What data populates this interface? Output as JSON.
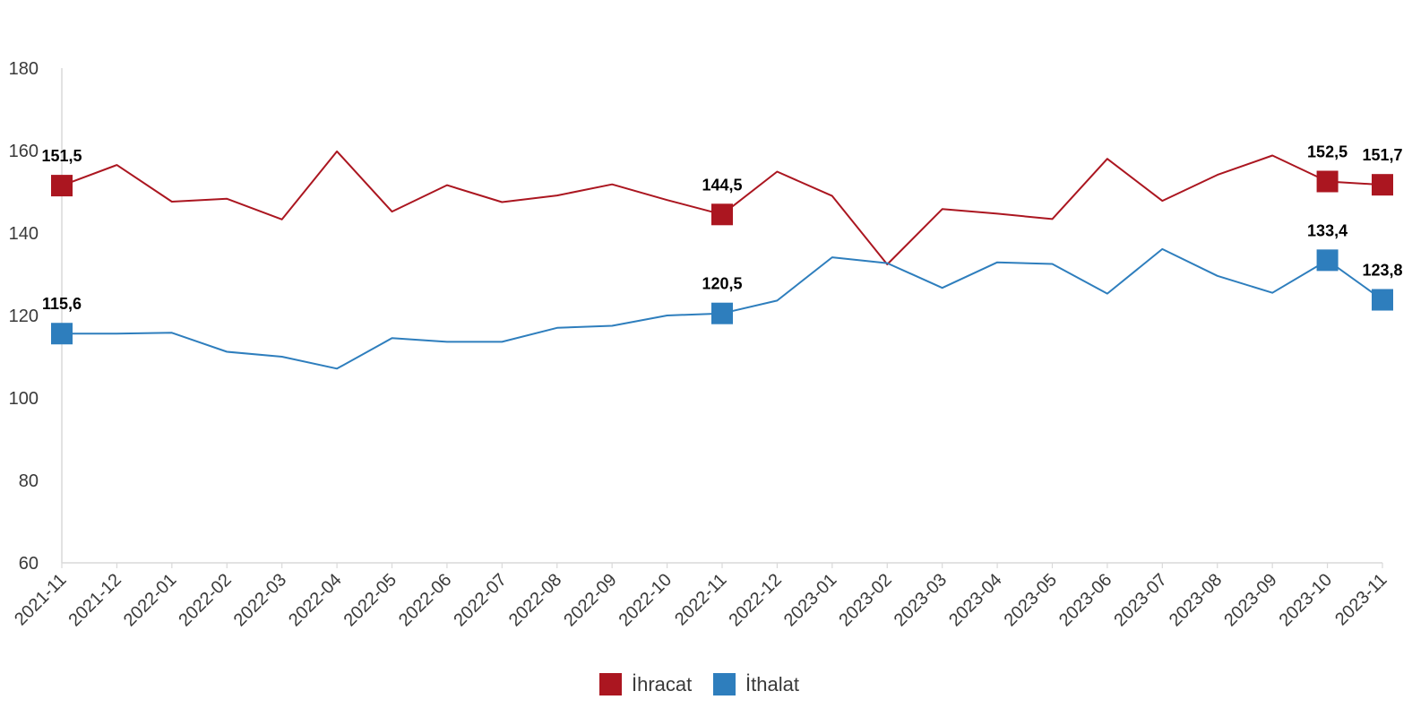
{
  "chart_data": {
    "type": "line",
    "x": [
      "2021-11",
      "2021-12",
      "2022-01",
      "2022-02",
      "2022-03",
      "2022-04",
      "2022-05",
      "2022-06",
      "2022-07",
      "2022-08",
      "2022-09",
      "2022-10",
      "2022-11",
      "2022-12",
      "2023-01",
      "2023-02",
      "2023-03",
      "2023-04",
      "2023-05",
      "2023-06",
      "2023-07",
      "2023-08",
      "2023-09",
      "2023-10",
      "2023-11"
    ],
    "ylim": [
      60,
      180
    ],
    "yticks": [
      60,
      80,
      100,
      120,
      140,
      160,
      180
    ],
    "legend_position": "bottom",
    "grid": false,
    "series": [
      {
        "name": "İhracat",
        "color": "#ab1620",
        "values": [
          151.5,
          156.5,
          147.6,
          148.3,
          143.3,
          159.8,
          145.2,
          151.6,
          147.5,
          149.1,
          151.8,
          148.0,
          144.5,
          154.9,
          149.0,
          132.4,
          145.8,
          144.7,
          143.4,
          158.0,
          147.8,
          154.1,
          158.8,
          152.5,
          151.7
        ],
        "markers": [
          {
            "index": 0,
            "label": "151,5"
          },
          {
            "index": 12,
            "label": "144,5"
          },
          {
            "index": 23,
            "label": "152,5"
          },
          {
            "index": 24,
            "label": "151,7"
          }
        ]
      },
      {
        "name": "İthalat",
        "color": "#2e7ebd",
        "values": [
          115.6,
          115.6,
          115.8,
          111.2,
          110.0,
          107.1,
          114.5,
          113.6,
          113.6,
          117.0,
          117.5,
          120.0,
          120.5,
          123.6,
          134.1,
          132.7,
          126.7,
          132.9,
          132.5,
          125.3,
          136.1,
          129.6,
          125.5,
          133.4,
          123.8
        ],
        "markers": [
          {
            "index": 0,
            "label": "115,6"
          },
          {
            "index": 12,
            "label": "120,5"
          },
          {
            "index": 23,
            "label": "133,4"
          },
          {
            "index": 24,
            "label": "123,8"
          }
        ]
      }
    ]
  }
}
